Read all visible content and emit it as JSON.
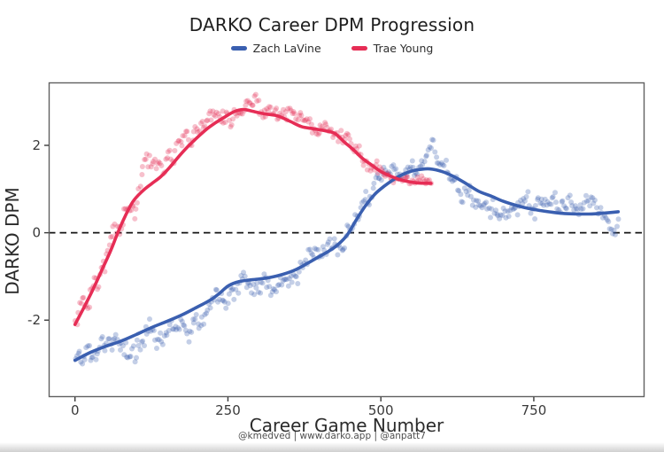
{
  "footer": {
    "credit": "@kmedved | www.darko.app | @anpatt7"
  },
  "chart_data": {
    "type": "scatter",
    "title": "DARKO Career DPM Progression",
    "xlabel": "Career Game Number",
    "ylabel": "DARKO DPM",
    "xlim": [
      -43,
      931
    ],
    "ylim": [
      -3.76,
      3.44
    ],
    "xticks": [
      0,
      250,
      500,
      750
    ],
    "yticks": [
      2,
      0,
      -2
    ],
    "zero_line": 0,
    "grid": false,
    "legend_position": "top-center",
    "colors": {
      "zero_line": "#141414",
      "spine": "#606060",
      "tick": "#3a3a3a"
    },
    "series": [
      {
        "name": "Zach LaVine",
        "color": "#3a5fb0",
        "trend": [
          [
            0,
            -2.92
          ],
          [
            25,
            -2.74
          ],
          [
            50,
            -2.6
          ],
          [
            75,
            -2.48
          ],
          [
            100,
            -2.33
          ],
          [
            125,
            -2.17
          ],
          [
            150,
            -2.03
          ],
          [
            175,
            -1.88
          ],
          [
            200,
            -1.7
          ],
          [
            220,
            -1.55
          ],
          [
            235,
            -1.4
          ],
          [
            250,
            -1.22
          ],
          [
            265,
            -1.13
          ],
          [
            280,
            -1.09
          ],
          [
            300,
            -1.06
          ],
          [
            320,
            -1.02
          ],
          [
            340,
            -0.95
          ],
          [
            360,
            -0.85
          ],
          [
            380,
            -0.7
          ],
          [
            400,
            -0.54
          ],
          [
            415,
            -0.42
          ],
          [
            430,
            -0.27
          ],
          [
            445,
            -0.05
          ],
          [
            460,
            0.3
          ],
          [
            475,
            0.62
          ],
          [
            490,
            0.88
          ],
          [
            505,
            1.06
          ],
          [
            520,
            1.21
          ],
          [
            535,
            1.33
          ],
          [
            550,
            1.41
          ],
          [
            565,
            1.45
          ],
          [
            580,
            1.46
          ],
          [
            600,
            1.4
          ],
          [
            620,
            1.28
          ],
          [
            640,
            1.12
          ],
          [
            660,
            0.95
          ],
          [
            680,
            0.84
          ],
          [
            700,
            0.72
          ],
          [
            720,
            0.63
          ],
          [
            740,
            0.56
          ],
          [
            760,
            0.51
          ],
          [
            780,
            0.47
          ],
          [
            800,
            0.44
          ],
          [
            820,
            0.43
          ],
          [
            845,
            0.43
          ],
          [
            865,
            0.45
          ],
          [
            888,
            0.48
          ]
        ],
        "scatter_spec": {
          "seed": 11,
          "start": 1,
          "end": 888,
          "step": 2.2,
          "radius": 3,
          "opacity": 0.3,
          "amp": [
            [
              0,
              0.42
            ],
            [
              100,
              0.5
            ],
            [
              220,
              0.36
            ],
            [
              440,
              0.3
            ],
            [
              520,
              0.3
            ],
            [
              888,
              0.32
            ]
          ],
          "bias": [
            [
              0,
              0
            ],
            [
              100,
              -0.12
            ],
            [
              150,
              -0.22
            ],
            [
              210,
              -0.05
            ],
            [
              250,
              0
            ],
            [
              540,
              0.05
            ],
            [
              565,
              0.2
            ],
            [
              585,
              0.25
            ],
            [
              605,
              0
            ],
            [
              630,
              -0.25
            ],
            [
              665,
              -0.3
            ],
            [
              700,
              -0.18
            ],
            [
              725,
              0
            ],
            [
              835,
              0.18
            ],
            [
              860,
              0.15
            ],
            [
              875,
              -0.25
            ],
            [
              888,
              -0.35
            ]
          ]
        }
      },
      {
        "name": "Trae Young",
        "color": "#e62d55",
        "trend": [
          [
            0,
            -2.1
          ],
          [
            15,
            -1.7
          ],
          [
            30,
            -1.28
          ],
          [
            45,
            -0.82
          ],
          [
            58,
            -0.42
          ],
          [
            70,
            0.0
          ],
          [
            82,
            0.38
          ],
          [
            95,
            0.72
          ],
          [
            110,
            0.95
          ],
          [
            125,
            1.12
          ],
          [
            140,
            1.28
          ],
          [
            155,
            1.5
          ],
          [
            170,
            1.75
          ],
          [
            185,
            1.98
          ],
          [
            200,
            2.18
          ],
          [
            215,
            2.37
          ],
          [
            230,
            2.52
          ],
          [
            245,
            2.65
          ],
          [
            260,
            2.77
          ],
          [
            275,
            2.82
          ],
          [
            290,
            2.78
          ],
          [
            310,
            2.72
          ],
          [
            330,
            2.68
          ],
          [
            350,
            2.56
          ],
          [
            370,
            2.43
          ],
          [
            390,
            2.38
          ],
          [
            410,
            2.33
          ],
          [
            425,
            2.27
          ],
          [
            440,
            2.08
          ],
          [
            455,
            1.9
          ],
          [
            470,
            1.7
          ],
          [
            485,
            1.55
          ],
          [
            500,
            1.4
          ],
          [
            515,
            1.3
          ],
          [
            530,
            1.22
          ],
          [
            545,
            1.17
          ],
          [
            560,
            1.14
          ],
          [
            582,
            1.13
          ]
        ],
        "scatter_spec": {
          "seed": 4,
          "start": 1,
          "end": 582,
          "step": 2.2,
          "radius": 3,
          "opacity": 0.3,
          "amp": [
            [
              0,
              0.48
            ],
            [
              130,
              0.42
            ],
            [
              210,
              0.3
            ],
            [
              470,
              0.26
            ],
            [
              525,
              0.13
            ],
            [
              582,
              0.1
            ]
          ],
          "bias": [
            [
              0,
              0
            ],
            [
              50,
              -0.12
            ],
            [
              90,
              0.05
            ],
            [
              260,
              0
            ],
            [
              395,
              0.1
            ],
            [
              430,
              0
            ],
            [
              582,
              0
            ]
          ]
        }
      }
    ]
  }
}
